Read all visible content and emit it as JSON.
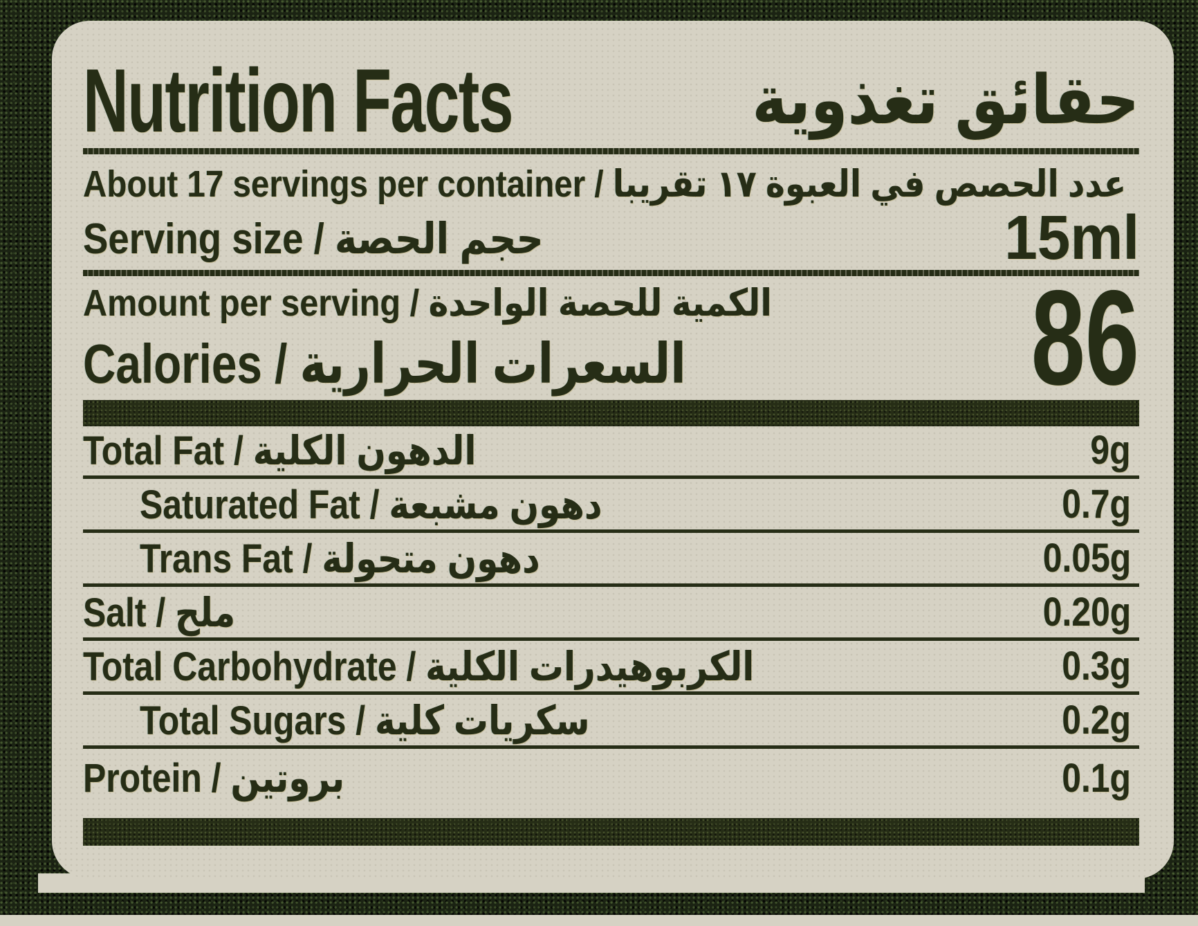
{
  "label": {
    "title_en": "Nutrition Facts",
    "title_ar": "حقائق تغذوية",
    "servings_line": "About 17 servings per container / عدد الحصص في العبوة ١٧ تقريبا",
    "serving_size_label": "Serving size / حجم الحصة",
    "serving_size_value": "15ml",
    "amount_per_serving_label": "Amount per serving / الكمية للحصة الواحدة",
    "calories_label": "Calories / السعرات الحرارية",
    "calories_value": "86",
    "rows": [
      {
        "label": "Total Fat / الدهون الكلية",
        "value": "9g"
      },
      {
        "label": "Saturated Fat / دهون مشبعة",
        "value": "0.7g"
      },
      {
        "label": "Trans Fat / دهون متحولة",
        "value": "0.05g"
      },
      {
        "label": "Salt / ملح",
        "value": "0.20g"
      },
      {
        "label": "Total Carbohydrate / الكربوهيدرات الكلية",
        "value": "0.3g"
      },
      {
        "label": "Total Sugars / سكريات كلية",
        "value": "0.2g"
      },
      {
        "label": "Protein / بروتين",
        "value": "0.1g"
      }
    ]
  },
  "colors": {
    "paper": "#d6d2c4",
    "ink": "#262d16",
    "bg": "#1b2313"
  }
}
